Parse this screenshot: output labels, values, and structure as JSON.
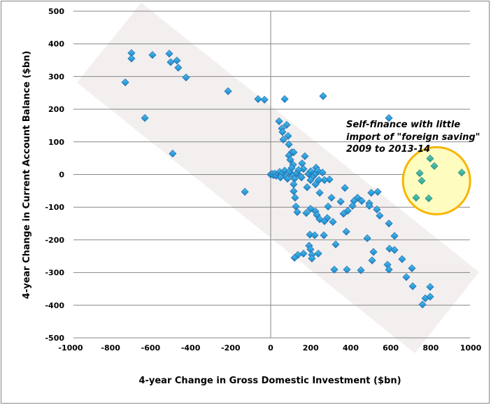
{
  "chart_data": {
    "type": "scatter",
    "title": "",
    "xlabel": "4-year Change in Gross Domestic Investment ($bn)",
    "ylabel": "4-year Change in Current Account Balance ($bn)",
    "xlim": [
      -1000,
      1000
    ],
    "ylim": [
      -500,
      500
    ],
    "xticks": [
      -1000,
      -800,
      -600,
      -400,
      -200,
      0,
      200,
      400,
      600,
      800,
      1000
    ],
    "yticks": [
      500,
      400,
      300,
      200,
      100,
      0,
      -100,
      -200,
      -300,
      -400,
      -500
    ],
    "grid": "horizontal",
    "legend": "none",
    "colors": {
      "points": "#1e9fd8",
      "point_outline": "#2b6fb0",
      "highlight_points": "#3bb5a0",
      "band": "#f2efee",
      "circle_fill": "#fffcc0",
      "circle_stroke": "#f7b500",
      "gridline": "#868686"
    },
    "annotation": {
      "lines": [
        "Self-finance with little",
        "import of \"foreign saving\"",
        "2009  to 2013-14"
      ]
    },
    "series": [
      {
        "points": [
          [
            -696,
            372
          ],
          [
            -696,
            355
          ],
          [
            -591,
            366
          ],
          [
            -507,
            370
          ],
          [
            -500,
            344
          ],
          [
            -469,
            349
          ],
          [
            -462,
            327
          ],
          [
            -423,
            297
          ],
          [
            -727,
            282
          ],
          [
            -213,
            255
          ],
          [
            -63,
            231
          ],
          [
            -31,
            229
          ],
          [
            -629,
            173
          ],
          [
            -490,
            64
          ],
          [
            -129,
            -53
          ],
          [
            70,
            231
          ],
          [
            262,
            240
          ],
          [
            591,
            173
          ],
          [
            42,
            163
          ],
          [
            80,
            152
          ],
          [
            56,
            141
          ],
          [
            59,
            130
          ],
          [
            87,
            118
          ],
          [
            63,
            107
          ],
          [
            91,
            92
          ],
          [
            105,
            68
          ],
          [
            115,
            68
          ],
          [
            91,
            58
          ],
          [
            171,
            56
          ],
          [
            98,
            45
          ],
          [
            112,
            30
          ],
          [
            157,
            34
          ],
          [
            164,
            17
          ],
          [
            227,
            21
          ],
          [
            259,
            6
          ],
          [
            0,
            0
          ],
          [
            7,
            2
          ],
          [
            14,
            -2
          ],
          [
            21,
            3
          ],
          [
            28,
            -4
          ],
          [
            38,
            2
          ],
          [
            45,
            8
          ],
          [
            52,
            -3
          ],
          [
            59,
            4
          ],
          [
            70,
            12
          ],
          [
            77,
            -6
          ],
          [
            94,
            9
          ],
          [
            105,
            20
          ],
          [
            112,
            -4
          ],
          [
            129,
            4
          ],
          [
            140,
            14
          ],
          [
            150,
            -6
          ],
          [
            189,
            2
          ],
          [
            200,
            10
          ],
          [
            210,
            -8
          ],
          [
            224,
            2
          ],
          [
            235,
            12
          ],
          [
            294,
            -15
          ],
          [
            269,
            -17
          ],
          [
            241,
            -17
          ],
          [
            199,
            -17
          ],
          [
            154,
            -9
          ],
          [
            119,
            -13
          ],
          [
            84,
            -13
          ],
          [
            49,
            -9
          ],
          [
            115,
            -30
          ],
          [
            182,
            -39
          ],
          [
            224,
            -30
          ],
          [
            371,
            -41
          ],
          [
            115,
            -51
          ],
          [
            245,
            -56
          ],
          [
            503,
            -56
          ],
          [
            535,
            -53
          ],
          [
            122,
            -71
          ],
          [
            304,
            -71
          ],
          [
            350,
            -83
          ],
          [
            434,
            -71
          ],
          [
            416,
            -81
          ],
          [
            455,
            -81
          ],
          [
            493,
            -88
          ],
          [
            493,
            -96
          ],
          [
            126,
            -98
          ],
          [
            287,
            -98
          ],
          [
            409,
            -96
          ],
          [
            133,
            -115
          ],
          [
            178,
            -118
          ],
          [
            199,
            -105
          ],
          [
            224,
            -113
          ],
          [
            231,
            -124
          ],
          [
            245,
            -137
          ],
          [
            269,
            -143
          ],
          [
            283,
            -133
          ],
          [
            311,
            -145
          ],
          [
            364,
            -120
          ],
          [
            385,
            -111
          ],
          [
            531,
            -107
          ],
          [
            545,
            -126
          ],
          [
            591,
            -150
          ],
          [
            196,
            -184
          ],
          [
            220,
            -186
          ],
          [
            266,
            -186
          ],
          [
            378,
            -175
          ],
          [
            483,
            -195
          ],
          [
            619,
            -188
          ],
          [
            325,
            -214
          ],
          [
            192,
            -218
          ],
          [
            199,
            -229
          ],
          [
            238,
            -242
          ],
          [
            206,
            -246
          ],
          [
            206,
            -257
          ],
          [
            164,
            -242
          ],
          [
            136,
            -246
          ],
          [
            119,
            -255
          ],
          [
            514,
            -237
          ],
          [
            594,
            -227
          ],
          [
            619,
            -231
          ],
          [
            507,
            -263
          ],
          [
            657,
            -259
          ],
          [
            584,
            -276
          ],
          [
            591,
            -291
          ],
          [
            318,
            -291
          ],
          [
            381,
            -291
          ],
          [
            451,
            -293
          ],
          [
            706,
            -287
          ],
          [
            678,
            -314
          ],
          [
            710,
            -342
          ],
          [
            797,
            -344
          ],
          [
            773,
            -379
          ],
          [
            797,
            -374
          ],
          [
            759,
            -398
          ]
        ]
      },
      {
        "points": [
          [
            797,
            49
          ],
          [
            818,
            26
          ],
          [
            745,
            4
          ],
          [
            955,
            6
          ],
          [
            755,
            -19
          ],
          [
            727,
            -71
          ],
          [
            790,
            -73
          ]
        ]
      }
    ]
  }
}
